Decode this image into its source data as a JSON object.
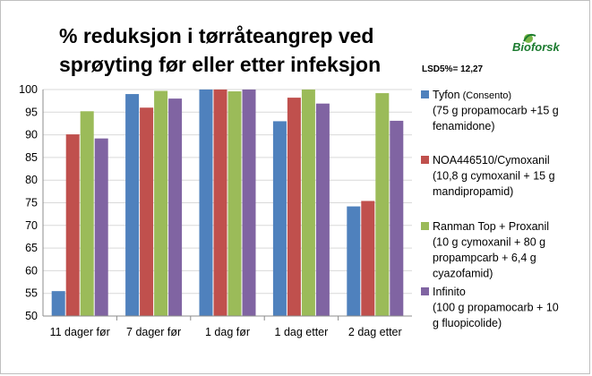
{
  "logo": {
    "text": "Bioforsk"
  },
  "lsd_label": "LSD5%= 12,27",
  "colors": {
    "blue": "#4F81BD",
    "red": "#C0504D",
    "green": "#9BBB59",
    "purple": "#8064A2",
    "grid": "#d9d9d9"
  },
  "chart_data": {
    "type": "bar",
    "title": "% reduksjon i tørråteangrep ved sprøyting før eller etter infeksjon",
    "title_lines": [
      "% reduksjon i tørråteangrep ved",
      "sprøyting før eller etter infeksjon"
    ],
    "ylim": [
      50,
      100
    ],
    "yticks": [
      50,
      55,
      60,
      65,
      70,
      75,
      80,
      85,
      90,
      95,
      100
    ],
    "grid": true,
    "legend_position": "right",
    "categories": [
      "11 dager før",
      "7 dager før",
      "1 dag før",
      "1 dag etter",
      "2 dag etter"
    ],
    "series": [
      {
        "name": "Tyfon",
        "name_sub": " (Consento)",
        "detail": [
          "(75 g propamocarb +15 g",
          "fenamidone)"
        ],
        "values": [
          55.5,
          99,
          100,
          93,
          74.2
        ]
      },
      {
        "name": "NOA446510/Cymoxanil",
        "name_sub": "",
        "detail": [
          "(10,8 g cymoxanil + 15 g",
          "mandipropamid)"
        ],
        "values": [
          90.1,
          96,
          100,
          98.2,
          75.4
        ]
      },
      {
        "name": "Ranman Top + Proxanil",
        "name_sub": "",
        "detail": [
          "(10 g cymoxanil + 80 g",
          "propampcarb + 6,4 g",
          "cyazofamid)"
        ],
        "values": [
          95.2,
          99.7,
          99.6,
          100,
          99.2
        ]
      },
      {
        "name": "Infinito",
        "name_sub": "",
        "detail": [
          "(100 g propamocarb + 10",
          "g fluopicolide)"
        ],
        "values": [
          89.2,
          98,
          100,
          96.9,
          93.1
        ]
      }
    ]
  }
}
